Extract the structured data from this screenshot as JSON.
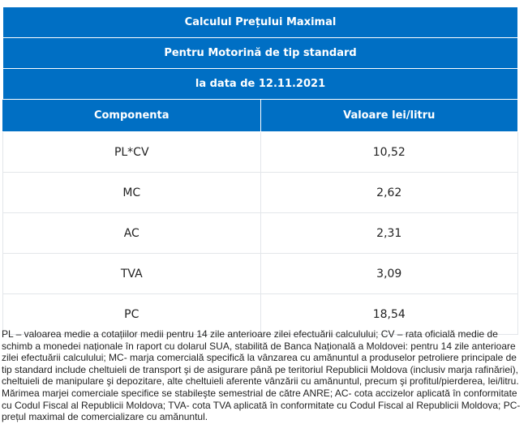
{
  "table": {
    "title": "Calculul Prețului Maximal",
    "subtitle": "Pentru Motorină de tip standard",
    "date_line": "la data de 12.11.2021",
    "columns": [
      "Componenta",
      "Valoare lei/litru"
    ],
    "rows": [
      [
        "PL*CV",
        "10,52"
      ],
      [
        "MC",
        "2,62"
      ],
      [
        "AC",
        "2,31"
      ],
      [
        "TVA",
        "3,09"
      ],
      [
        "PC",
        "18,54"
      ]
    ]
  },
  "footnote": "PL – valoarea medie a cotațiilor medii pentru 14 zile anterioare zilei efectuării calculului; CV – rata oficială medie de schimb a monedei naționale în raport cu dolarul SUA, stabilită de Banca Națională a Moldovei: pentru 14 zile anterioare zilei efectuării calculului; MC- marja comercială specifică la vânzarea cu amănuntul a produselor petroliere principale de tip standard include cheltuieli de transport şi de asigurare până pe teritoriul Republicii Moldova (inclusiv marja rafinăriei), cheltuieli de manipulare şi depozitare, alte cheltuieli aferente vânzării cu amănuntul, precum şi profitul/pierderea, lei/litru. Mărimea marjei comerciale specifice se stabileşte semestrial de către ANRE; AC- cota accizelor aplicată în conformitate cu Codul Fiscal al Republicii Moldova; TVA- cota TVA aplicată în conformitate cu Codul Fiscal al Republicii Moldova; PC- prețul maximal de comercializare cu amănuntul.",
  "colors": {
    "header_bg": "#006fc4",
    "header_text": "#ffffff",
    "border": "#e3e6ea"
  }
}
